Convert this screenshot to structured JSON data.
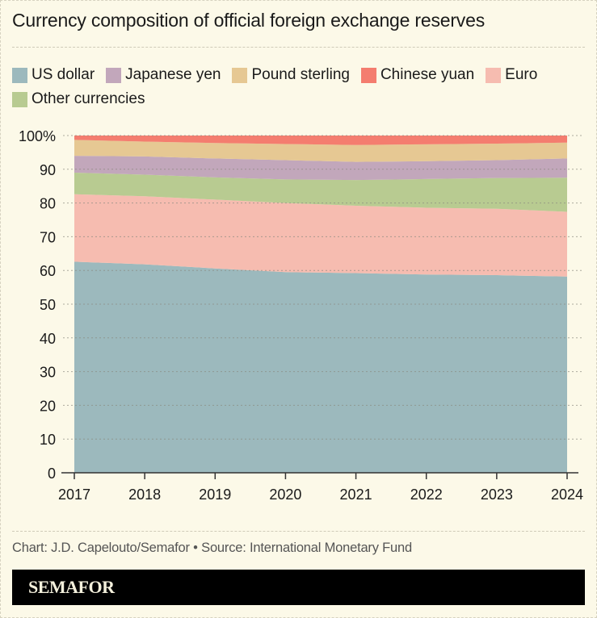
{
  "title": "Currency composition of official foreign exchange reserves",
  "legend": [
    {
      "label": "US dollar",
      "color": "#9cb9bd"
    },
    {
      "label": "Japanese yen",
      "color": "#c2a7bb"
    },
    {
      "label": "Pound sterling",
      "color": "#e6c893"
    },
    {
      "label": "Chinese yuan",
      "color": "#f47d6f"
    },
    {
      "label": "Euro",
      "color": "#f6bcb0"
    },
    {
      "label": "Other currencies",
      "color": "#b8cb91"
    }
  ],
  "chart_data": {
    "type": "area",
    "stacked": true,
    "x": [
      2017,
      2018,
      2019,
      2020,
      2021,
      2022,
      2023,
      2024
    ],
    "ylim": [
      0,
      100
    ],
    "yticks": [
      0,
      10,
      20,
      30,
      40,
      50,
      60,
      70,
      80,
      90,
      100
    ],
    "ytick_labels": [
      "0",
      "10",
      "20",
      "30",
      "40",
      "50",
      "60",
      "70",
      "80",
      "90",
      "100%"
    ],
    "xtick_labels": [
      "2017",
      "2018",
      "2019",
      "2020",
      "2021",
      "2022",
      "2023",
      "2024"
    ],
    "grid": true,
    "legend_placement": "top",
    "series": [
      {
        "name": "US dollar",
        "color": "#9cb9bd",
        "values": [
          62.6,
          61.8,
          60.6,
          59.5,
          59.2,
          58.8,
          58.6,
          58.2
        ]
      },
      {
        "name": "Euro",
        "color": "#f6bcb0",
        "values": [
          20.0,
          20.2,
          20.4,
          20.5,
          20.0,
          19.8,
          19.7,
          19.2
        ]
      },
      {
        "name": "Other currencies",
        "color": "#b8cb91",
        "values": [
          6.4,
          6.4,
          6.6,
          7.0,
          7.6,
          8.5,
          9.1,
          10.1
        ]
      },
      {
        "name": "Japanese yen",
        "color": "#c2a7bb",
        "values": [
          5.0,
          5.4,
          5.6,
          5.7,
          5.4,
          5.3,
          5.3,
          5.7
        ]
      },
      {
        "name": "Pound sterling",
        "color": "#e6c893",
        "values": [
          4.7,
          4.4,
          4.6,
          4.8,
          5.0,
          5.0,
          4.9,
          4.7
        ]
      },
      {
        "name": "Chinese yuan",
        "color": "#f47d6f",
        "values": [
          1.3,
          1.8,
          2.2,
          2.5,
          2.8,
          2.6,
          2.4,
          2.1
        ]
      }
    ]
  },
  "credit": "Chart: J.D. Capelouto/Semafor • Source: International Monetary Fund",
  "brand": "SEMAFOR"
}
